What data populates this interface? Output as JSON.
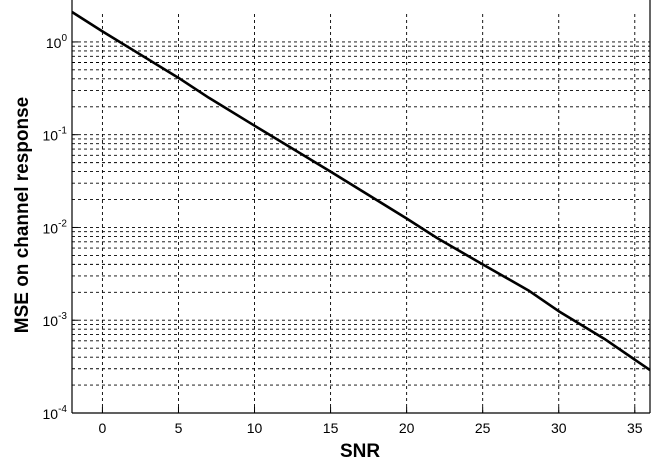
{
  "chart_data": {
    "type": "line",
    "title": "",
    "xlabel": "SNR",
    "ylabel": "MSE on channel response",
    "xlim": [
      -2,
      36
    ],
    "ylim": [
      0.0001,
      2
    ],
    "yscale": "log",
    "grid": true,
    "x_ticks": [
      0,
      5,
      10,
      15,
      20,
      25,
      30,
      35
    ],
    "y_ticks": [
      {
        "value": 1,
        "base": "10",
        "exp": "0"
      },
      {
        "value": 0.1,
        "base": "10",
        "exp": "-1"
      },
      {
        "value": 0.01,
        "base": "10",
        "exp": "-2"
      },
      {
        "value": 0.001,
        "base": "10",
        "exp": "-3"
      },
      {
        "value": 0.0001,
        "base": "10",
        "exp": "-4"
      }
    ],
    "series": [
      {
        "color": "#000000",
        "x": [
          -2,
          0,
          5,
          7,
          10,
          15,
          20,
          22,
          25,
          28,
          30,
          33,
          36
        ],
        "y": [
          2.1,
          1.3,
          0.41,
          0.25,
          0.125,
          0.04,
          0.0125,
          0.0077,
          0.004,
          0.0021,
          0.00125,
          0.00063,
          0.00029
        ]
      }
    ]
  }
}
